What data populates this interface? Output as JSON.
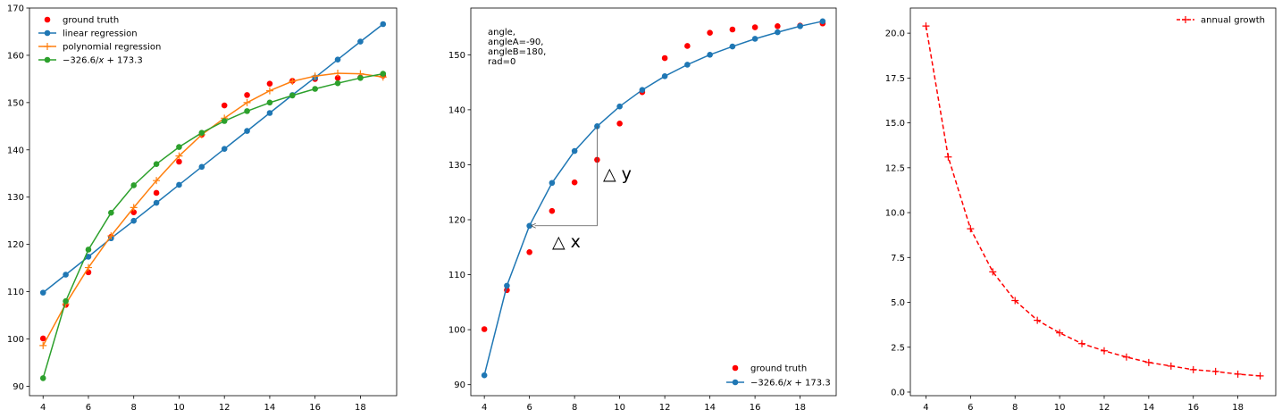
{
  "chart_data": [
    {
      "type": "line",
      "xlim": [
        3.4,
        19.6
      ],
      "ylim": [
        88.0,
        170.0
      ],
      "xticks": [
        4,
        6,
        8,
        10,
        12,
        14,
        16,
        18
      ],
      "yticks": [
        90,
        100,
        110,
        120,
        130,
        140,
        150,
        160,
        170
      ],
      "xlabel": "",
      "ylabel": "",
      "title": "",
      "grid": false,
      "legend": {
        "placement": "top-left"
      },
      "series": [
        {
          "name": "ground truth",
          "style": "scatter",
          "marker": "o",
          "color": "#ff0000",
          "x": [
            4,
            5,
            6,
            7,
            8,
            9,
            10,
            11,
            12,
            13,
            14,
            15,
            16,
            17,
            18,
            19
          ],
          "y": [
            100.1,
            107.2,
            114.1,
            121.6,
            126.8,
            130.9,
            137.5,
            143.2,
            149.4,
            151.6,
            154.0,
            154.6,
            155.0,
            155.2,
            155.3,
            155.7
          ]
        },
        {
          "name": "linear regression",
          "style": "line",
          "marker": "o",
          "color": "#1f77b4",
          "x": [
            4,
            5,
            6,
            7,
            8,
            9,
            10,
            11,
            12,
            13,
            14,
            15,
            16,
            17,
            18,
            19
          ],
          "y": [
            109.8,
            113.6,
            117.4,
            121.3,
            125.0,
            128.8,
            132.6,
            136.4,
            140.2,
            144.0,
            147.8,
            151.6,
            155.3,
            159.1,
            162.9,
            166.6
          ]
        },
        {
          "name": "polynomial regression",
          "style": "line",
          "marker": "+",
          "color": "#ff7f0e",
          "x": [
            4,
            5,
            6,
            7,
            8,
            9,
            10,
            11,
            12,
            13,
            14,
            15,
            16,
            17,
            18,
            19
          ],
          "y": [
            98.6,
            107.4,
            115.1,
            121.8,
            127.8,
            133.5,
            138.7,
            143.2,
            146.7,
            150.0,
            152.5,
            154.5,
            155.6,
            156.2,
            156.1,
            155.4
          ]
        },
        {
          "name_parts": {
            "lead": "−326.6/",
            "var": "x",
            "tail": " + 173.3"
          },
          "style": "line",
          "marker": "o",
          "color": "#2ca02c",
          "x": [
            4,
            5,
            6,
            7,
            8,
            9,
            10,
            11,
            12,
            13,
            14,
            15,
            16,
            17,
            18,
            19
          ],
          "y": [
            91.7,
            108.0,
            118.9,
            126.7,
            132.5,
            137.0,
            140.6,
            143.6,
            146.1,
            148.2,
            150.0,
            151.5,
            152.9,
            154.1,
            155.2,
            156.1
          ]
        }
      ]
    },
    {
      "type": "line",
      "xlim": [
        3.4,
        19.6
      ],
      "ylim": [
        88.0,
        158.5
      ],
      "xticks": [
        4,
        6,
        8,
        10,
        12,
        14,
        16,
        18
      ],
      "yticks": [
        90,
        100,
        110,
        120,
        130,
        140,
        150
      ],
      "xlabel": "",
      "ylabel": "",
      "title": "",
      "grid": false,
      "legend": {
        "placement": "bottom-right"
      },
      "annotation_text": [
        "angle,",
        "angleA=-90,",
        "angleB=180,",
        "rad=0"
      ],
      "delta_labels": [
        "△ x",
        "△ y"
      ],
      "connection": {
        "from": [
          9,
          137.0
        ],
        "to": [
          6,
          118.9
        ]
      },
      "series": [
        {
          "name": "ground truth",
          "style": "scatter",
          "marker": "o",
          "color": "#ff0000",
          "x": [
            4,
            5,
            6,
            7,
            8,
            9,
            10,
            11,
            12,
            13,
            14,
            15,
            16,
            17,
            18,
            19
          ],
          "y": [
            100.1,
            107.2,
            114.1,
            121.6,
            126.8,
            130.9,
            137.5,
            143.2,
            149.4,
            151.6,
            154.0,
            154.6,
            155.0,
            155.2,
            155.3,
            155.7
          ]
        },
        {
          "name_parts": {
            "lead": "−326.6/",
            "var": "x",
            "tail": " + 173.3"
          },
          "style": "line",
          "marker": "o",
          "color": "#1f77b4",
          "x": [
            4,
            5,
            6,
            7,
            8,
            9,
            10,
            11,
            12,
            13,
            14,
            15,
            16,
            17,
            18,
            19
          ],
          "y": [
            91.7,
            108.0,
            118.9,
            126.7,
            132.5,
            137.0,
            140.6,
            143.6,
            146.1,
            148.2,
            150.0,
            151.5,
            152.9,
            154.1,
            155.2,
            156.1
          ]
        }
      ]
    },
    {
      "type": "line",
      "xlim": [
        3.3,
        19.7
      ],
      "ylim": [
        -0.2,
        21.4
      ],
      "xticks": [
        4,
        6,
        8,
        10,
        12,
        14,
        16,
        18
      ],
      "yticks": [
        0.0,
        2.5,
        5.0,
        7.5,
        10.0,
        12.5,
        15.0,
        17.5,
        20.0
      ],
      "ytick_labels": [
        "0.0",
        "2.5",
        "5.0",
        "7.5",
        "10.0",
        "12.5",
        "15.0",
        "17.5",
        "20.0"
      ],
      "xlabel": "",
      "ylabel": "",
      "title": "",
      "grid": false,
      "legend": {
        "placement": "top-right"
      },
      "series": [
        {
          "name": "annual growth",
          "style": "dashed",
          "marker": "+",
          "color": "#ff0000",
          "x": [
            4,
            5,
            6,
            7,
            8,
            9,
            10,
            11,
            12,
            13,
            14,
            15,
            16,
            17,
            18,
            19
          ],
          "y": [
            20.4,
            13.1,
            9.1,
            6.7,
            5.1,
            4.0,
            3.3,
            2.7,
            2.3,
            1.95,
            1.65,
            1.45,
            1.25,
            1.15,
            1.0,
            0.9
          ]
        }
      ]
    }
  ]
}
